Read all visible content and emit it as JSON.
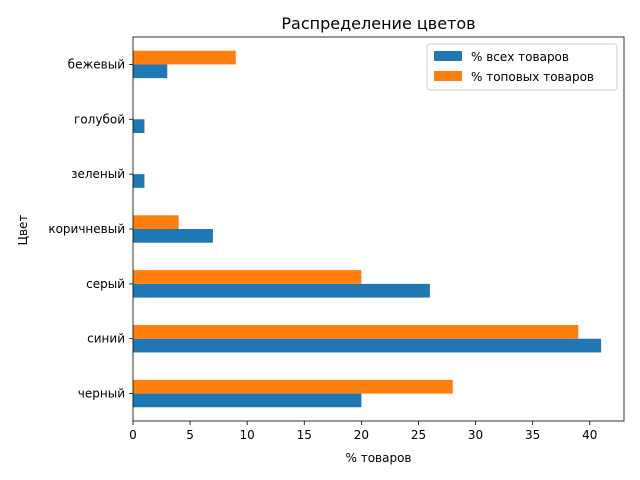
{
  "chart_data": {
    "type": "bar",
    "orientation": "horizontal",
    "title": "Распределение цветов",
    "xlabel": "% товаров",
    "ylabel": "Цвет",
    "xlim": [
      0,
      43
    ],
    "xticks": [
      0,
      5,
      10,
      15,
      20,
      25,
      30,
      35,
      40
    ],
    "categories": [
      "черный",
      "синий",
      "серый",
      "коричневый",
      "зеленый",
      "голубой",
      "бежевый"
    ],
    "series": [
      {
        "name": "% всех товаров",
        "color": "#1f77b4",
        "values": [
          20,
          41,
          26,
          7,
          1,
          1,
          3
        ]
      },
      {
        "name": "% топовых товаров",
        "color": "#ff7f0e",
        "values": [
          28,
          39,
          20,
          4,
          0,
          0,
          9
        ]
      }
    ],
    "legend": "top-right",
    "grid": false
  }
}
